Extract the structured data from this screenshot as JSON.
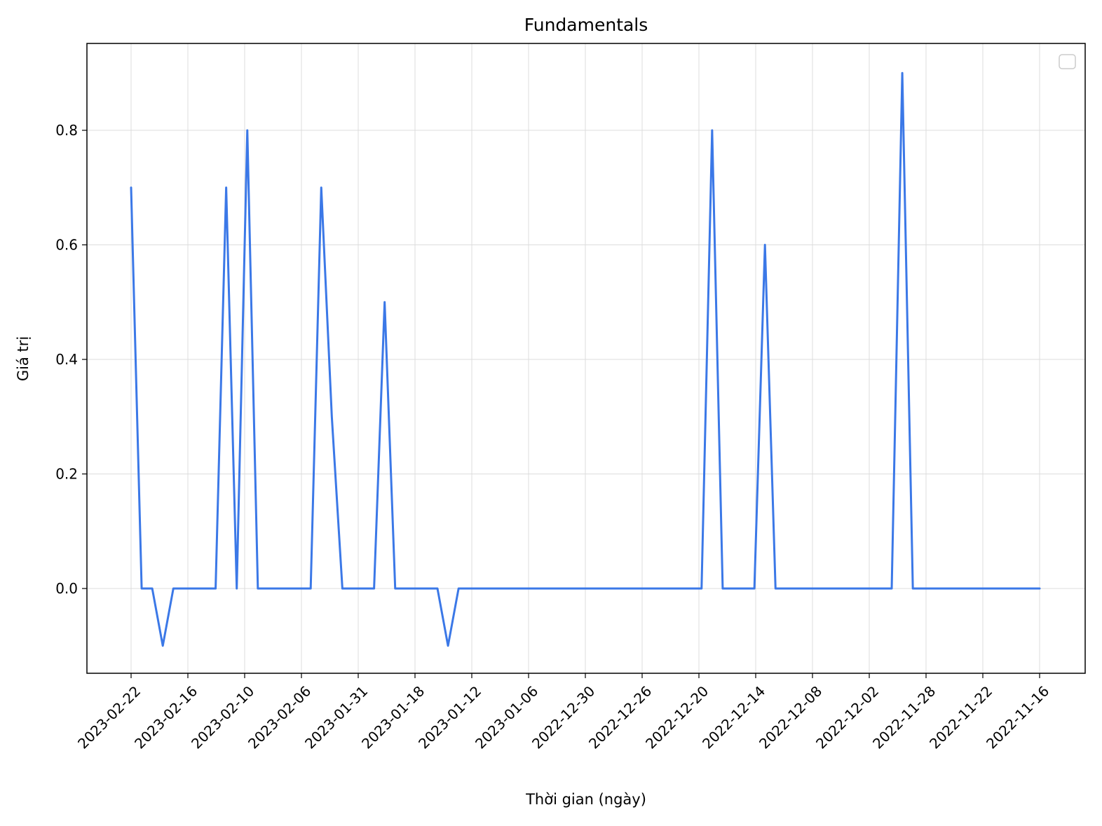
{
  "chart_data": {
    "type": "line",
    "title": "Fundamentals",
    "xlabel": "Thời gian (ngày)",
    "ylabel": "Giá trị",
    "x_ticks": [
      "2023-02-22",
      "2023-02-16",
      "2023-02-10",
      "2023-02-06",
      "2023-01-31",
      "2023-01-18",
      "2023-01-12",
      "2023-01-06",
      "2022-12-30",
      "2022-12-26",
      "2022-12-20",
      "2022-12-14",
      "2022-12-08",
      "2022-12-02",
      "2022-11-28",
      "2022-11-22",
      "2022-11-16"
    ],
    "y_ticks": [
      "0.0",
      "0.2",
      "0.4",
      "0.6",
      "0.8"
    ],
    "y_tick_values": [
      0.0,
      0.2,
      0.4,
      0.6,
      0.8
    ],
    "ylim": [
      -0.15,
      0.95
    ],
    "grid": true,
    "legend": "top-right (empty)",
    "series": [
      {
        "color": "#3b78e7",
        "values": [
          0.7,
          0,
          0,
          -0.1,
          0,
          0,
          0,
          0,
          0,
          0.7,
          0,
          0.8,
          0,
          0,
          0,
          0,
          0,
          0,
          0.7,
          0.3,
          0,
          0,
          0,
          0,
          0.5,
          0,
          0,
          0,
          0,
          0,
          -0.1,
          0,
          0,
          0,
          0,
          0,
          0,
          0,
          0,
          0,
          0,
          0,
          0,
          0,
          0,
          0,
          0,
          0,
          0,
          0,
          0,
          0,
          0,
          0,
          0,
          0.8,
          0,
          0,
          0,
          0,
          0.6,
          0,
          0,
          0,
          0,
          0,
          0,
          0,
          0,
          0,
          0,
          0,
          0,
          0.9,
          0,
          0,
          0,
          0,
          0,
          0,
          0,
          0,
          0,
          0,
          0,
          0,
          0
        ]
      }
    ]
  }
}
